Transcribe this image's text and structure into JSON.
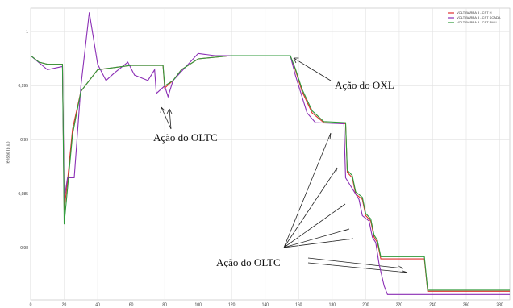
{
  "chart_data": {
    "type": "line",
    "y_label": "Tensão (p.u.)",
    "xlim": [
      0,
      286
    ],
    "ylim": [
      0.9752,
      1.0022
    ],
    "xticks": [
      0,
      20,
      40,
      60,
      80,
      100,
      120,
      140,
      160,
      180,
      200,
      220,
      240,
      260,
      280
    ],
    "yticks": [
      {
        "value": 0.98,
        "label": "0,98"
      },
      {
        "value": 0.985,
        "label": "0,985"
      },
      {
        "value": 0.99,
        "label": "0,99"
      },
      {
        "value": 0.995,
        "label": "0,995"
      },
      1
    ],
    "grid": true,
    "legend": "upper right",
    "series": [
      {
        "name": "VOLT BARRA 8 - CST H",
        "color": "#e03030",
        "x": [
          0,
          5,
          10,
          19,
          20,
          22,
          25,
          30,
          40,
          60,
          79,
          80,
          85,
          90,
          100,
          120,
          155,
          158,
          162,
          168,
          175,
          188,
          189,
          192,
          194,
          198,
          200,
          203,
          205,
          207,
          209,
          235,
          237,
          286
        ],
        "values": [
          0.9978,
          0.9972,
          0.997,
          0.997,
          0.9835,
          0.9862,
          0.991,
          0.9945,
          0.9965,
          0.9969,
          0.9969,
          0.9948,
          0.9955,
          0.9965,
          0.9975,
          0.9978,
          0.9978,
          0.9965,
          0.9945,
          0.9925,
          0.9916,
          0.9915,
          0.987,
          0.9865,
          0.985,
          0.9845,
          0.983,
          0.9825,
          0.981,
          0.9805,
          0.979,
          0.979,
          0.976,
          0.976
        ]
      },
      {
        "name": "VOLT BARRA 8 - CST SCADA",
        "color": "#8b2fb5",
        "x": [
          0,
          10,
          19,
          20,
          22,
          26,
          30,
          35,
          40,
          45,
          50,
          58,
          62,
          70,
          74,
          75,
          80,
          82,
          85,
          100,
          110,
          155,
          158,
          165,
          170,
          187,
          188,
          196,
          198,
          202,
          204,
          206,
          208,
          211,
          213,
          286
        ],
        "values": [
          0.9978,
          0.9965,
          0.9968,
          0.9845,
          0.9865,
          0.9865,
          0.995,
          1.0018,
          0.997,
          0.9955,
          0.9962,
          0.9972,
          0.996,
          0.9955,
          0.9965,
          0.9943,
          0.995,
          0.994,
          0.9955,
          0.998,
          0.9978,
          0.9978,
          0.996,
          0.9925,
          0.9916,
          0.9915,
          0.9865,
          0.9845,
          0.983,
          0.9825,
          0.981,
          0.9805,
          0.9785,
          0.9765,
          0.9757,
          0.9757
        ]
      },
      {
        "name": "VOLT BARRA 8 - CST PMU",
        "color": "#2e9a3a",
        "x": [
          0,
          5,
          10,
          19,
          20,
          22,
          25,
          30,
          40,
          60,
          79,
          80,
          85,
          90,
          100,
          120,
          155,
          158,
          162,
          168,
          175,
          188,
          189,
          192,
          194,
          198,
          200,
          203,
          205,
          207,
          209,
          235,
          237,
          286
        ],
        "values": [
          0.9978,
          0.9972,
          0.997,
          0.997,
          0.9822,
          0.9855,
          0.9905,
          0.9945,
          0.9965,
          0.9969,
          0.9969,
          0.995,
          0.9955,
          0.9965,
          0.9975,
          0.9978,
          0.9978,
          0.9966,
          0.9947,
          0.9927,
          0.9917,
          0.9916,
          0.9872,
          0.9867,
          0.9852,
          0.9847,
          0.9832,
          0.9827,
          0.9812,
          0.9807,
          0.9792,
          0.9792,
          0.9761,
          0.9761
        ]
      }
    ],
    "annotations": [
      {
        "text": "Ação do OXL"
      },
      {
        "text": "Ação do OLTC"
      },
      {
        "text": "Ação do OLTC"
      }
    ]
  }
}
